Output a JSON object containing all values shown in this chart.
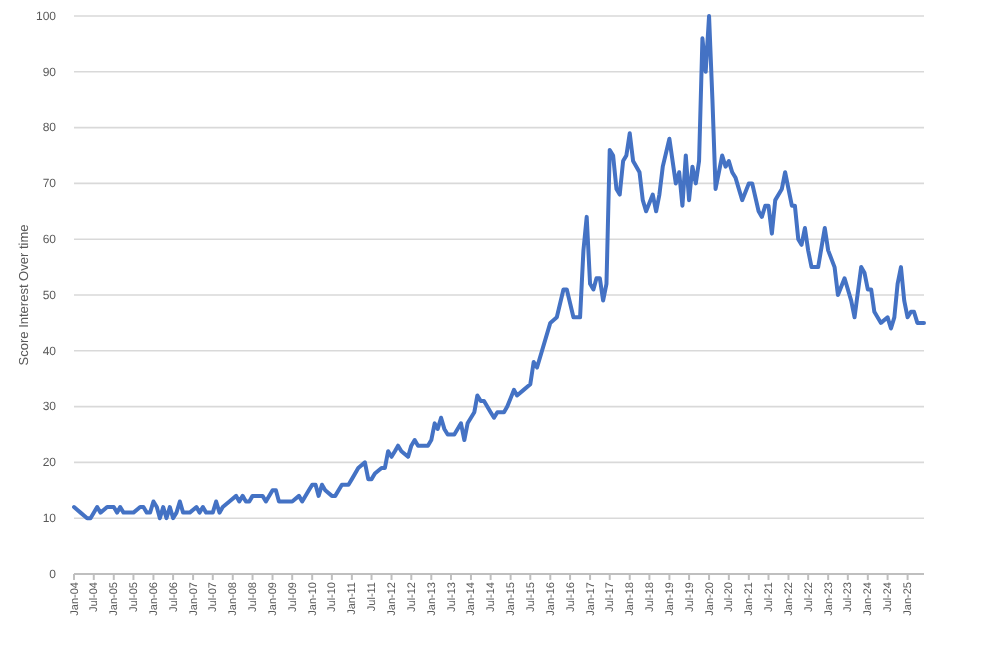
{
  "chart_data": {
    "type": "line",
    "ylabel": "Score Interest Over time",
    "ylim": [
      0,
      100
    ],
    "yticks": [
      0,
      10,
      20,
      30,
      40,
      50,
      60,
      70,
      80,
      90,
      100
    ],
    "grid": "y",
    "xlim": [
      "2004-01",
      "2025-06"
    ],
    "xticks": [
      {
        "value": "2004-01",
        "label": "Jan-04"
      },
      {
        "value": "2004-07",
        "label": "Jul-04"
      },
      {
        "value": "2005-01",
        "label": "Jan-05"
      },
      {
        "value": "2005-07",
        "label": "Jul-05"
      },
      {
        "value": "2006-01",
        "label": "Jan-06"
      },
      {
        "value": "2006-07",
        "label": "Jul-06"
      },
      {
        "value": "2007-01",
        "label": "Jan-07"
      },
      {
        "value": "2007-07",
        "label": "Jul-07"
      },
      {
        "value": "2008-01",
        "label": "Jan-08"
      },
      {
        "value": "2008-07",
        "label": "Jul-08"
      },
      {
        "value": "2009-01",
        "label": "Jan-09"
      },
      {
        "value": "2009-07",
        "label": "Jul-09"
      },
      {
        "value": "2010-01",
        "label": "Jan-10"
      },
      {
        "value": "2010-07",
        "label": "Jul-10"
      },
      {
        "value": "2011-01",
        "label": "Jan-11"
      },
      {
        "value": "2011-07",
        "label": "Jul-11"
      },
      {
        "value": "2012-01",
        "label": "Jan-12"
      },
      {
        "value": "2012-07",
        "label": "Jul-12"
      },
      {
        "value": "2013-01",
        "label": "Jan-13"
      },
      {
        "value": "2013-07",
        "label": "Jul-13"
      },
      {
        "value": "2014-01",
        "label": "Jan-14"
      },
      {
        "value": "2014-07",
        "label": "Jul-14"
      },
      {
        "value": "2015-01",
        "label": "Jan-15"
      },
      {
        "value": "2015-07",
        "label": "Jul-15"
      },
      {
        "value": "2016-01",
        "label": "Jan-16"
      },
      {
        "value": "2016-07",
        "label": "Jul-16"
      },
      {
        "value": "2017-01",
        "label": "Jan-17"
      },
      {
        "value": "2017-07",
        "label": "Jul-17"
      },
      {
        "value": "2018-01",
        "label": "Jan-18"
      },
      {
        "value": "2018-07",
        "label": "Jul-18"
      },
      {
        "value": "2019-01",
        "label": "Jan-19"
      },
      {
        "value": "2019-07",
        "label": "Jul-19"
      },
      {
        "value": "2020-01",
        "label": "Jan-20"
      },
      {
        "value": "2020-07",
        "label": "Jul-20"
      },
      {
        "value": "2021-01",
        "label": "Jan-21"
      },
      {
        "value": "2021-07",
        "label": "Jul-21"
      },
      {
        "value": "2022-01",
        "label": "Jan-22"
      },
      {
        "value": "2022-07",
        "label": "Jul-22"
      },
      {
        "value": "2023-01",
        "label": "Jan-23"
      },
      {
        "value": "2023-07",
        "label": "Jul-23"
      },
      {
        "value": "2024-01",
        "label": "Jan-24"
      },
      {
        "value": "2024-07",
        "label": "Jul-24"
      },
      {
        "value": "2025-01",
        "label": "Jan-25"
      }
    ],
    "marker": "none",
    "line_style": "solid",
    "series": [
      {
        "color": "#4472c4",
        "x": [
          "2004-01",
          "2004-03",
          "2004-05",
          "2004-06",
          "2004-08",
          "2004-09",
          "2004-11",
          "2005-01",
          "2005-02",
          "2005-03",
          "2005-04",
          "2005-07",
          "2005-09",
          "2005-10",
          "2005-11",
          "2005-12",
          "2006-01",
          "2006-02",
          "2006-03",
          "2006-04",
          "2006-05",
          "2006-06",
          "2006-07",
          "2006-08",
          "2006-09",
          "2006-10",
          "2006-12",
          "2007-02",
          "2007-03",
          "2007-04",
          "2007-05",
          "2007-07",
          "2007-08",
          "2007-09",
          "2007-10",
          "2007-12",
          "2008-02",
          "2008-03",
          "2008-04",
          "2008-05",
          "2008-06",
          "2008-07",
          "2008-10",
          "2008-11",
          "2009-01",
          "2009-02",
          "2009-03",
          "2009-07",
          "2009-09",
          "2009-10",
          "2009-12",
          "2010-01",
          "2010-02",
          "2010-03",
          "2010-04",
          "2010-05",
          "2010-07",
          "2010-08",
          "2010-10",
          "2010-12",
          "2011-01",
          "2011-03",
          "2011-05",
          "2011-06",
          "2011-07",
          "2011-08",
          "2011-10",
          "2011-11",
          "2011-12",
          "2012-01",
          "2012-02",
          "2012-03",
          "2012-04",
          "2012-06",
          "2012-07",
          "2012-08",
          "2012-09",
          "2012-12",
          "2013-01",
          "2013-02",
          "2013-03",
          "2013-04",
          "2013-05",
          "2013-06",
          "2013-08",
          "2013-10",
          "2013-11",
          "2013-12",
          "2014-02",
          "2014-03",
          "2014-04",
          "2014-05",
          "2014-07",
          "2014-08",
          "2014-09",
          "2014-11",
          "2014-12",
          "2015-02",
          "2015-03",
          "2015-05",
          "2015-07",
          "2015-08",
          "2015-09",
          "2016-01",
          "2016-03",
          "2016-05",
          "2016-06",
          "2016-08",
          "2016-10",
          "2016-11",
          "2016-12",
          "2017-01",
          "2017-02",
          "2017-03",
          "2017-04",
          "2017-05",
          "2017-06",
          "2017-07",
          "2017-08",
          "2017-09",
          "2017-10",
          "2017-11",
          "2017-12",
          "2018-01",
          "2018-02",
          "2018-04",
          "2018-05",
          "2018-06",
          "2018-08",
          "2018-09",
          "2018-10",
          "2018-11",
          "2019-01",
          "2019-03",
          "2019-04",
          "2019-05",
          "2019-06",
          "2019-07",
          "2019-08",
          "2019-09",
          "2019-10",
          "2019-11",
          "2019-12",
          "2020-01",
          "2020-02",
          "2020-03",
          "2020-05",
          "2020-06",
          "2020-07",
          "2020-08",
          "2020-09",
          "2020-11",
          "2021-01",
          "2021-02",
          "2021-04",
          "2021-05",
          "2021-06",
          "2021-07",
          "2021-08",
          "2021-09",
          "2021-11",
          "2021-12",
          "2022-02",
          "2022-03",
          "2022-04",
          "2022-05",
          "2022-06",
          "2022-07",
          "2022-08",
          "2022-10",
          "2022-12",
          "2023-01",
          "2023-03",
          "2023-04",
          "2023-06",
          "2023-08",
          "2023-09",
          "2023-11",
          "2023-12",
          "2024-01",
          "2024-02",
          "2024-03",
          "2024-05",
          "2024-07",
          "2024-08",
          "2024-09",
          "2024-10",
          "2024-11",
          "2024-12",
          "2025-01",
          "2025-02",
          "2025-03",
          "2025-04",
          "2025-06"
        ],
        "values": [
          12,
          11,
          10,
          10,
          12,
          11,
          12,
          12,
          11,
          12,
          11,
          11,
          12,
          12,
          11,
          11,
          13,
          12,
          10,
          12,
          10,
          12,
          10,
          11,
          13,
          11,
          11,
          12,
          11,
          12,
          11,
          11,
          13,
          11,
          12,
          13,
          14,
          13,
          14,
          13,
          13,
          14,
          14,
          13,
          15,
          15,
          13,
          13,
          14,
          13,
          15,
          16,
          16,
          14,
          16,
          15,
          14,
          14,
          16,
          16,
          17,
          19,
          20,
          17,
          17,
          18,
          19,
          19,
          22,
          21,
          22,
          23,
          22,
          21,
          23,
          24,
          23,
          23,
          24,
          27,
          26,
          28,
          26,
          25,
          25,
          27,
          24,
          27,
          29,
          32,
          31,
          31,
          29,
          28,
          29,
          29,
          30,
          33,
          32,
          33,
          34,
          38,
          37,
          45,
          46,
          51,
          51,
          46,
          46,
          58,
          64,
          52,
          51,
          53,
          53,
          49,
          52,
          76,
          75,
          69,
          68,
          74,
          75,
          79,
          74,
          72,
          67,
          65,
          68,
          65,
          68,
          73,
          78,
          70,
          72,
          66,
          75,
          67,
          73,
          70,
          74,
          96,
          90,
          100,
          85,
          69,
          75,
          73,
          74,
          72,
          71,
          67,
          70,
          70,
          65,
          64,
          66,
          66,
          61,
          67,
          69,
          72,
          66,
          66,
          60,
          59,
          62,
          58,
          55,
          55,
          62,
          58,
          55,
          50,
          53,
          49,
          46,
          55,
          54,
          51,
          51,
          47,
          45,
          46,
          44,
          46,
          52,
          55,
          49,
          46,
          47,
          47,
          45,
          45
        ]
      }
    ]
  }
}
